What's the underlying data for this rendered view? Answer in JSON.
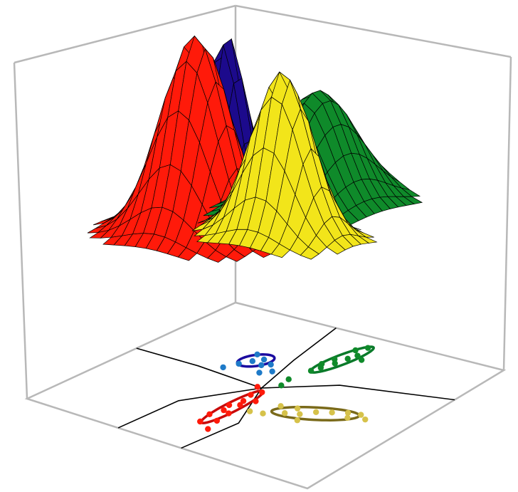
{
  "chart_data": {
    "type": "3d-surface-with-scatter",
    "colors": {
      "red": "#ff1a0a",
      "yellow": "#f2e51a",
      "blue": "#1c0a8c",
      "green": "#0f8a2a",
      "red_ellipse": "#c80a0a",
      "yellow_ellipse": "#7a6a1a",
      "blue_ellipse": "#1a0aa0",
      "green_ellipse": "#0a7a2a",
      "blue_points": "#1e7ac8",
      "yellow_points": "#d6c24a"
    },
    "surfaces": [
      {
        "color": "red",
        "amplitude": 0.95,
        "mean": [
          -0.45,
          0.15
        ],
        "sigma": [
          0.18,
          0.22
        ]
      },
      {
        "color": "yellow",
        "amplitude": 0.78,
        "mean": [
          -0.15,
          -0.25
        ],
        "sigma": [
          0.15,
          0.2
        ]
      },
      {
        "color": "blue",
        "amplitude": 0.78,
        "mean": [
          0.35,
          0.55
        ],
        "sigma": [
          0.12,
          0.12
        ]
      },
      {
        "color": "green",
        "amplitude": 0.55,
        "mean": [
          0.5,
          0.0
        ],
        "sigma": [
          0.3,
          0.2
        ]
      }
    ],
    "clusters": [
      {
        "color": "red",
        "points": [
          [
            -0.62,
            0.04
          ],
          [
            -0.5,
            0.06
          ],
          [
            -0.4,
            0.03
          ],
          [
            -0.32,
            0.05
          ],
          [
            -0.22,
            0.02
          ],
          [
            -0.12,
            0.04
          ],
          [
            -0.05,
            0.01
          ],
          [
            -0.55,
            -0.03
          ],
          [
            -0.42,
            -0.02
          ],
          [
            -0.28,
            0.0
          ],
          [
            -0.18,
            -0.04
          ],
          [
            -0.68,
            -0.06
          ],
          [
            0.0,
            0.08
          ]
        ]
      },
      {
        "color": "yellow",
        "points": [
          [
            -0.3,
            -0.18
          ],
          [
            -0.22,
            -0.28
          ],
          [
            -0.18,
            -0.36
          ],
          [
            -0.1,
            -0.42
          ],
          [
            -0.05,
            -0.5
          ],
          [
            0.0,
            -0.58
          ],
          [
            0.02,
            -0.66
          ],
          [
            -0.26,
            -0.4
          ],
          [
            -0.12,
            -0.3
          ],
          [
            -0.06,
            -0.62
          ],
          [
            -0.02,
            -0.72
          ],
          [
            -0.32,
            -0.1
          ],
          [
            -0.15,
            -0.2
          ]
        ]
      },
      {
        "color": "blue",
        "points": [
          [
            0.22,
            0.38
          ],
          [
            0.3,
            0.34
          ],
          [
            0.36,
            0.3
          ],
          [
            0.28,
            0.26
          ],
          [
            0.4,
            0.38
          ],
          [
            0.18,
            0.2
          ],
          [
            0.24,
            0.15
          ],
          [
            0.32,
            0.22
          ],
          [
            0.12,
            0.42
          ]
        ]
      },
      {
        "color": "green",
        "points": [
          [
            0.45,
            -0.05
          ],
          [
            0.55,
            -0.08
          ],
          [
            0.65,
            -0.1
          ],
          [
            0.72,
            -0.12
          ],
          [
            0.5,
            -0.02
          ],
          [
            0.6,
            -0.04
          ],
          [
            0.78,
            -0.06
          ],
          [
            0.1,
            -0.02
          ],
          [
            0.2,
            0.0
          ],
          [
            0.38,
            -0.03
          ],
          [
            0.68,
            -0.18
          ],
          [
            0.85,
            -0.1
          ]
        ]
      }
    ],
    "ellipses": [
      {
        "color": "red_ellipse",
        "center": [
          -0.33,
          0.02
        ],
        "axes": [
          0.3,
          0.05
        ],
        "angle": 0
      },
      {
        "color": "yellow_ellipse",
        "center": [
          -0.12,
          -0.43
        ],
        "axes": [
          0.26,
          0.09
        ],
        "angle": -62
      },
      {
        "color": "blue_ellipse",
        "center": [
          0.32,
          0.33
        ],
        "axes": [
          0.12,
          0.08
        ],
        "angle": -20
      },
      {
        "color": "green_ellipse",
        "center": [
          0.62,
          -0.08
        ],
        "axes": [
          0.26,
          0.06
        ],
        "angle": -8
      }
    ]
  }
}
